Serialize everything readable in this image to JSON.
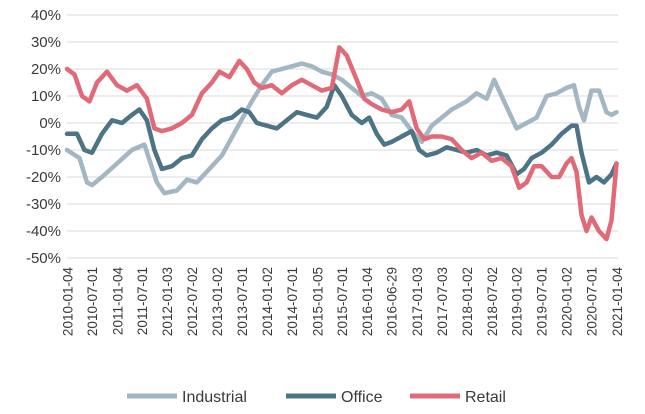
{
  "chart_data": {
    "type": "line",
    "title": "",
    "xlabel": "",
    "ylabel": "",
    "ylim": [
      -50,
      40
    ],
    "y_ticks": [
      "40%",
      "30%",
      "20%",
      "10%",
      "0%",
      "-10%",
      "-20%",
      "-30%",
      "-40%",
      "-50%"
    ],
    "x_tick_labels": [
      "2010-01-04",
      "2010-07-01",
      "2011-01-04",
      "2011-07-01",
      "2012-01-03",
      "2012-07-02",
      "2013-01-02",
      "2013-07-01",
      "2014-01-02",
      "2014-07-01",
      "2015-01-05",
      "2015-07-01",
      "2016-01-04",
      "2016-06-29",
      "2017-01-03",
      "2017-07-03",
      "2018-01-02",
      "2018-07-02",
      "2019-01-02",
      "2019-07-01",
      "2020-01-02",
      "2020-07-01",
      "2021-01-04"
    ],
    "grid": "horizontal",
    "legend_position": "bottom",
    "series": [
      {
        "name": "Industrial",
        "color": "#a2b6c4",
        "values": [
          [
            2010.0,
            -10
          ],
          [
            2010.25,
            -13
          ],
          [
            2010.4,
            -22
          ],
          [
            2010.5,
            -23
          ],
          [
            2010.7,
            -20
          ],
          [
            2011.0,
            -15
          ],
          [
            2011.3,
            -10
          ],
          [
            2011.55,
            -8
          ],
          [
            2011.8,
            -22
          ],
          [
            2011.95,
            -26
          ],
          [
            2012.2,
            -25
          ],
          [
            2012.4,
            -21
          ],
          [
            2012.6,
            -22
          ],
          [
            2012.8,
            -18
          ],
          [
            2013.1,
            -12
          ],
          [
            2013.4,
            -2
          ],
          [
            2013.7,
            8
          ],
          [
            2013.9,
            14
          ],
          [
            2014.1,
            19
          ],
          [
            2014.3,
            20
          ],
          [
            2014.5,
            21
          ],
          [
            2014.7,
            22
          ],
          [
            2014.9,
            21
          ],
          [
            2015.1,
            19
          ],
          [
            2015.3,
            18
          ],
          [
            2015.5,
            16
          ],
          [
            2015.7,
            13
          ],
          [
            2015.9,
            10
          ],
          [
            2016.1,
            11
          ],
          [
            2016.3,
            9
          ],
          [
            2016.5,
            3
          ],
          [
            2016.7,
            2
          ],
          [
            2016.9,
            -3
          ],
          [
            2017.1,
            -7
          ],
          [
            2017.3,
            -1
          ],
          [
            2017.5,
            2
          ],
          [
            2017.7,
            5
          ],
          [
            2018.0,
            8
          ],
          [
            2018.2,
            11
          ],
          [
            2018.4,
            9
          ],
          [
            2018.55,
            16
          ],
          [
            2018.8,
            6
          ],
          [
            2019.0,
            -2
          ],
          [
            2019.2,
            0
          ],
          [
            2019.4,
            2
          ],
          [
            2019.6,
            10
          ],
          [
            2019.8,
            11
          ],
          [
            2020.0,
            13
          ],
          [
            2020.15,
            14
          ],
          [
            2020.25,
            6
          ],
          [
            2020.35,
            1
          ],
          [
            2020.5,
            12
          ],
          [
            2020.65,
            12
          ],
          [
            2020.8,
            4
          ],
          [
            2020.9,
            3
          ],
          [
            2021.0,
            4
          ]
        ]
      },
      {
        "name": "Office",
        "color": "#4d7484",
        "values": [
          [
            2010.0,
            -4
          ],
          [
            2010.2,
            -4
          ],
          [
            2010.35,
            -10
          ],
          [
            2010.5,
            -11
          ],
          [
            2010.7,
            -4
          ],
          [
            2010.9,
            1
          ],
          [
            2011.1,
            0
          ],
          [
            2011.3,
            3
          ],
          [
            2011.45,
            5
          ],
          [
            2011.6,
            1
          ],
          [
            2011.75,
            -10
          ],
          [
            2011.9,
            -17
          ],
          [
            2012.1,
            -16
          ],
          [
            2012.3,
            -13
          ],
          [
            2012.5,
            -12
          ],
          [
            2012.7,
            -6
          ],
          [
            2012.9,
            -2
          ],
          [
            2013.1,
            1
          ],
          [
            2013.3,
            2
          ],
          [
            2013.5,
            5
          ],
          [
            2013.65,
            4
          ],
          [
            2013.8,
            0
          ],
          [
            2014.0,
            -1
          ],
          [
            2014.2,
            -2
          ],
          [
            2014.4,
            1
          ],
          [
            2014.6,
            4
          ],
          [
            2014.8,
            3
          ],
          [
            2015.0,
            2
          ],
          [
            2015.2,
            6
          ],
          [
            2015.35,
            14
          ],
          [
            2015.5,
            10
          ],
          [
            2015.7,
            3
          ],
          [
            2015.9,
            0
          ],
          [
            2016.05,
            2
          ],
          [
            2016.2,
            -4
          ],
          [
            2016.35,
            -8
          ],
          [
            2016.5,
            -7
          ],
          [
            2016.7,
            -5
          ],
          [
            2016.9,
            -3
          ],
          [
            2017.05,
            -10
          ],
          [
            2017.2,
            -12
          ],
          [
            2017.4,
            -11
          ],
          [
            2017.6,
            -9
          ],
          [
            2017.8,
            -10
          ],
          [
            2018.0,
            -11
          ],
          [
            2018.2,
            -10
          ],
          [
            2018.4,
            -12
          ],
          [
            2018.6,
            -11
          ],
          [
            2018.8,
            -12
          ],
          [
            2019.0,
            -19
          ],
          [
            2019.15,
            -17
          ],
          [
            2019.3,
            -13
          ],
          [
            2019.5,
            -11
          ],
          [
            2019.7,
            -8
          ],
          [
            2019.9,
            -4
          ],
          [
            2020.1,
            -1
          ],
          [
            2020.2,
            -1
          ],
          [
            2020.3,
            -11
          ],
          [
            2020.45,
            -22
          ],
          [
            2020.6,
            -20
          ],
          [
            2020.75,
            -22
          ],
          [
            2020.9,
            -19
          ],
          [
            2021.0,
            -15
          ]
        ]
      },
      {
        "name": "Retail",
        "color": "#e06a78",
        "values": [
          [
            2010.0,
            20
          ],
          [
            2010.15,
            18
          ],
          [
            2010.3,
            10
          ],
          [
            2010.45,
            8
          ],
          [
            2010.6,
            15
          ],
          [
            2010.8,
            19
          ],
          [
            2011.0,
            14
          ],
          [
            2011.2,
            12
          ],
          [
            2011.4,
            14
          ],
          [
            2011.6,
            9
          ],
          [
            2011.75,
            -2
          ],
          [
            2011.9,
            -3
          ],
          [
            2012.1,
            -2
          ],
          [
            2012.3,
            0
          ],
          [
            2012.5,
            3
          ],
          [
            2012.7,
            11
          ],
          [
            2012.9,
            15
          ],
          [
            2013.05,
            19
          ],
          [
            2013.25,
            17
          ],
          [
            2013.45,
            23
          ],
          [
            2013.6,
            20
          ],
          [
            2013.75,
            15
          ],
          [
            2013.9,
            13
          ],
          [
            2014.1,
            14
          ],
          [
            2014.3,
            11
          ],
          [
            2014.5,
            14
          ],
          [
            2014.7,
            16
          ],
          [
            2014.9,
            14
          ],
          [
            2015.1,
            12
          ],
          [
            2015.3,
            13
          ],
          [
            2015.45,
            28
          ],
          [
            2015.6,
            25
          ],
          [
            2015.8,
            16
          ],
          [
            2015.95,
            9
          ],
          [
            2016.1,
            7
          ],
          [
            2016.3,
            5
          ],
          [
            2016.5,
            4
          ],
          [
            2016.7,
            5
          ],
          [
            2016.85,
            8
          ],
          [
            2017.0,
            -2
          ],
          [
            2017.15,
            -6
          ],
          [
            2017.3,
            -5
          ],
          [
            2017.5,
            -5
          ],
          [
            2017.7,
            -6
          ],
          [
            2017.9,
            -10
          ],
          [
            2018.1,
            -13
          ],
          [
            2018.3,
            -11
          ],
          [
            2018.5,
            -14
          ],
          [
            2018.7,
            -13
          ],
          [
            2018.9,
            -16
          ],
          [
            2019.05,
            -24
          ],
          [
            2019.2,
            -22
          ],
          [
            2019.35,
            -16
          ],
          [
            2019.5,
            -16
          ],
          [
            2019.7,
            -20
          ],
          [
            2019.85,
            -20
          ],
          [
            2020.0,
            -15
          ],
          [
            2020.1,
            -13
          ],
          [
            2020.2,
            -18
          ],
          [
            2020.3,
            -34
          ],
          [
            2020.4,
            -40
          ],
          [
            2020.5,
            -35
          ],
          [
            2020.65,
            -40
          ],
          [
            2020.8,
            -43
          ],
          [
            2020.9,
            -36
          ],
          [
            2021.0,
            -15
          ]
        ]
      }
    ]
  }
}
